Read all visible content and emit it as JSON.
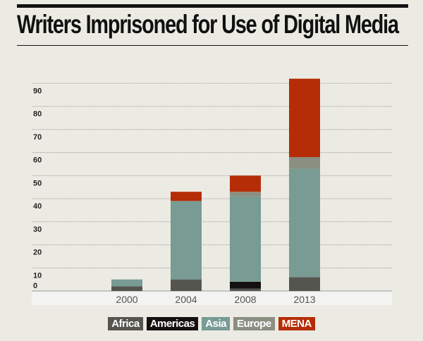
{
  "chart_data": {
    "type": "bar",
    "stacked": true,
    "title": "Writers Imprisoned for Use of Digital Media",
    "categories": [
      "2000",
      "2004",
      "2008",
      "2013"
    ],
    "series": [
      {
        "name": "Africa",
        "color": "#55554f",
        "values": [
          2,
          5,
          1,
          6
        ]
      },
      {
        "name": "Americas",
        "color": "#141011",
        "values": [
          0,
          0,
          3,
          0
        ]
      },
      {
        "name": "Asia",
        "color": "#789b94",
        "values": [
          3,
          34,
          37,
          47
        ]
      },
      {
        "name": "Europe",
        "color": "#8a8f82",
        "values": [
          0,
          0,
          2,
          5
        ]
      },
      {
        "name": "MENA",
        "color": "#b52d06",
        "values": [
          0,
          4,
          7,
          34
        ]
      }
    ],
    "yticks": [
      "0",
      "10",
      "20",
      "30",
      "40",
      "50",
      "60",
      "70",
      "80",
      "90"
    ],
    "ylim": [
      0,
      95
    ],
    "grid": true,
    "legend": "bottom"
  }
}
